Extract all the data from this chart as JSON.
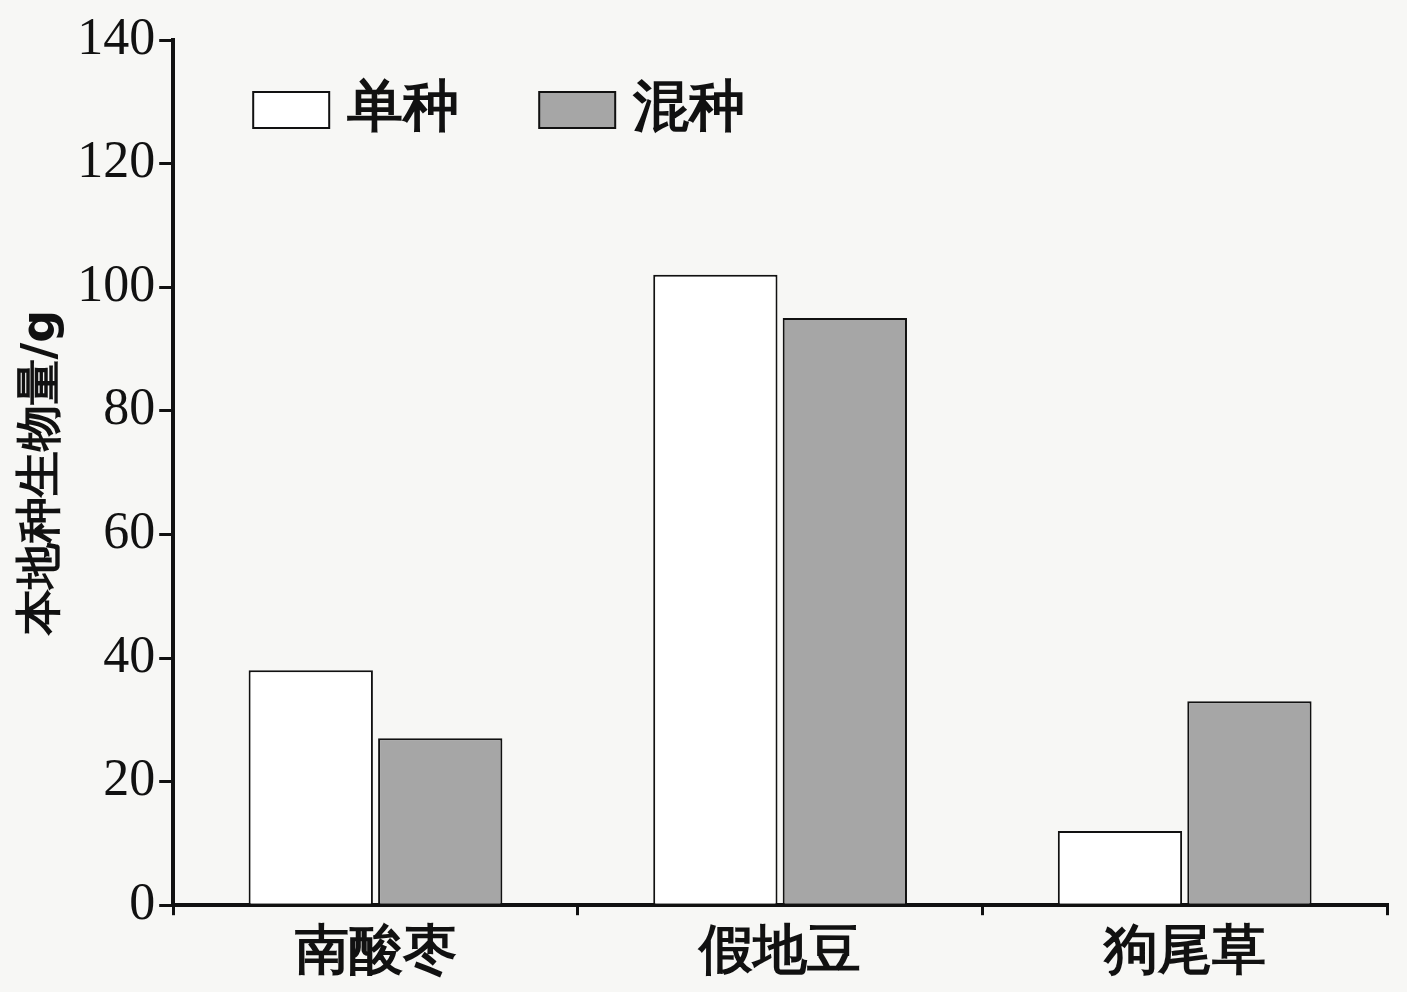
{
  "chart_data": {
    "type": "bar",
    "ylabel": "本地种生物量/g",
    "categories": [
      "南酸枣",
      "假地豆",
      "狗尾草"
    ],
    "series": [
      {
        "name": "单种",
        "color": "#ffffff",
        "values": [
          38,
          102,
          12
        ]
      },
      {
        "name": "混种",
        "color": "#a6a6a6",
        "values": [
          27,
          95,
          33
        ]
      }
    ],
    "ylim": [
      0,
      140
    ],
    "yticks": [
      0,
      20,
      40,
      60,
      80,
      100,
      120,
      140
    ],
    "legend": "top left"
  }
}
